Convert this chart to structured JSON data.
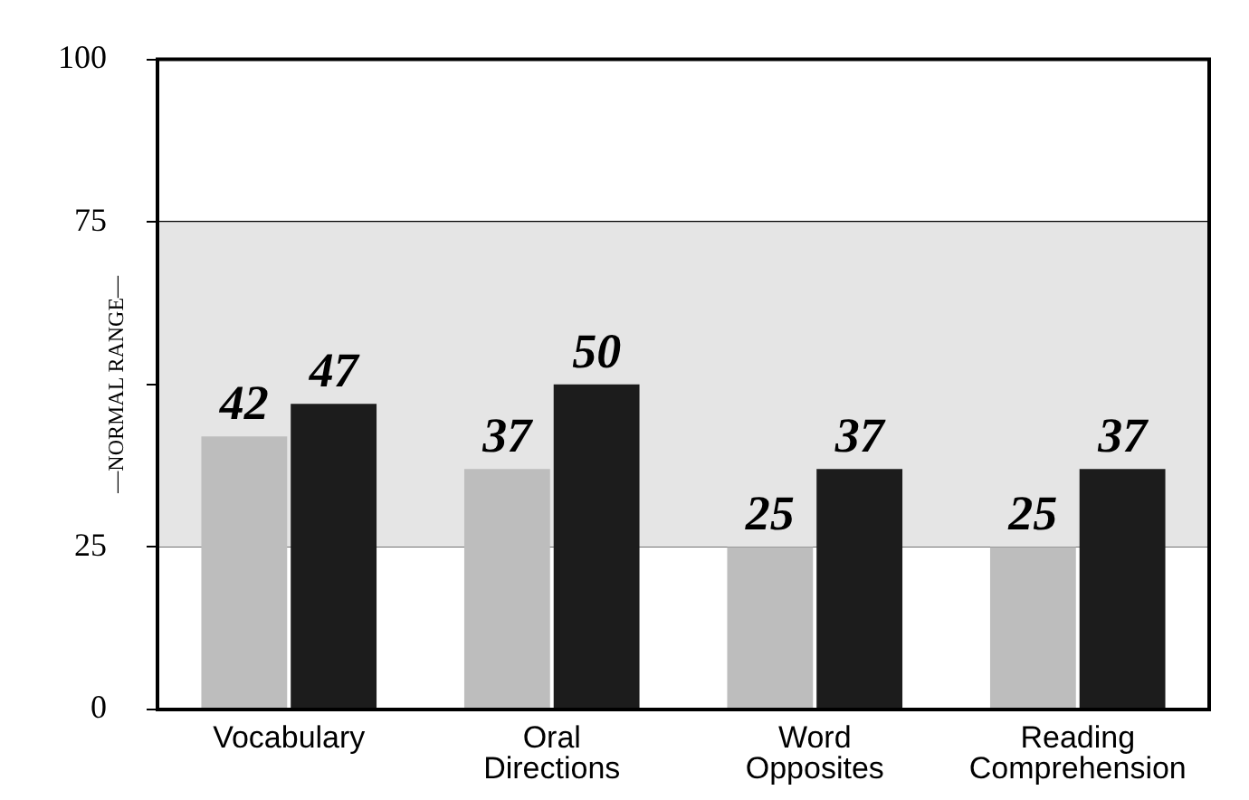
{
  "chart_data": {
    "type": "bar",
    "categories": [
      "Vocabulary",
      "Oral Directions",
      "Word Opposites",
      "Reading Comprehension"
    ],
    "series": [
      {
        "color": "#bdbdbd",
        "values": [
          42,
          37,
          25,
          25
        ]
      },
      {
        "color": "#1c1c1c",
        "values": [
          47,
          50,
          37,
          37
        ]
      }
    ],
    "ylim": [
      0,
      100
    ],
    "yticks": [
      0,
      25,
      {
        "value": 50,
        "label": null
      },
      75,
      100
    ],
    "bands": [
      {
        "axis": "y",
        "from": 25,
        "to": 75,
        "label": "—NORMAL RANGE—",
        "color": "#e5e5e5"
      }
    ],
    "data_labels": true,
    "grid": "y",
    "legend": false
  }
}
